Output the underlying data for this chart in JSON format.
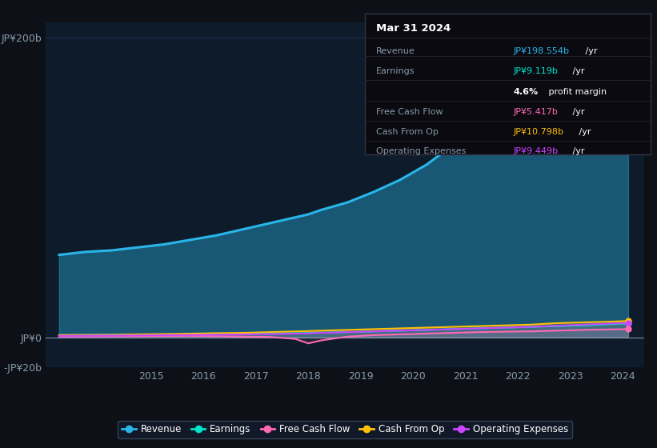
{
  "bg_color": "#0d1117",
  "plot_bg_color": "#0d1b2a",
  "years": [
    2013.25,
    2013.75,
    2014.25,
    2014.75,
    2015.25,
    2015.75,
    2016.25,
    2016.75,
    2017.25,
    2017.75,
    2018.0,
    2018.25,
    2018.75,
    2019.25,
    2019.75,
    2020.25,
    2020.75,
    2021.25,
    2021.75,
    2022.25,
    2022.75,
    2023.25,
    2023.75,
    2024.1
  ],
  "revenue": [
    55,
    57,
    58,
    60,
    62,
    65,
    68,
    72,
    76,
    80,
    82,
    85,
    90,
    97,
    105,
    115,
    128,
    143,
    158,
    168,
    178,
    188,
    195,
    199
  ],
  "earnings": [
    1.5,
    1.6,
    1.7,
    1.8,
    1.9,
    2.0,
    2.1,
    2.2,
    2.5,
    2.8,
    3.0,
    3.2,
    3.5,
    4.0,
    4.5,
    5.0,
    5.5,
    6.0,
    6.5,
    7.0,
    7.5,
    8.0,
    8.8,
    9.2
  ],
  "free_cash_flow": [
    0.5,
    0.6,
    0.7,
    0.8,
    0.9,
    1.0,
    0.8,
    0.5,
    0.3,
    -1.0,
    -4.0,
    -2.0,
    0.5,
    1.5,
    2.0,
    2.5,
    3.0,
    3.5,
    3.8,
    4.0,
    4.5,
    5.0,
    5.3,
    5.5
  ],
  "cash_from_op": [
    1.5,
    1.6,
    1.7,
    2.0,
    2.2,
    2.5,
    2.8,
    3.0,
    3.5,
    4.0,
    4.2,
    4.5,
    5.0,
    5.5,
    6.0,
    6.5,
    7.0,
    7.5,
    8.0,
    8.5,
    9.5,
    10.0,
    10.5,
    10.9
  ],
  "operating_expenses": [
    1.0,
    1.1,
    1.2,
    1.3,
    1.5,
    1.6,
    1.8,
    2.0,
    2.2,
    2.5,
    2.7,
    3.0,
    3.5,
    4.0,
    4.5,
    5.0,
    5.5,
    6.0,
    6.5,
    7.0,
    7.8,
    8.5,
    9.2,
    9.5
  ],
  "ylim": [
    -20,
    210
  ],
  "yticks": [
    -20,
    0,
    200
  ],
  "ytick_labels": [
    "-JP¥20b",
    "JP¥0",
    "JP¥200b"
  ],
  "xticks": [
    2015,
    2016,
    2017,
    2018,
    2019,
    2020,
    2021,
    2022,
    2023,
    2024
  ],
  "revenue_color": "#29b5e8",
  "earnings_color": "#00e5cc",
  "free_cash_flow_color": "#ff69b4",
  "cash_from_op_color": "#ffc107",
  "operating_expenses_color": "#cc44ff",
  "grid_color": "#1e3050",
  "legend_bg": "#111827",
  "legend_border": "#334155",
  "info_box": {
    "date": "Mar 31 2024",
    "rows": [
      {
        "label": "Revenue",
        "value": "JP¥198.554b /yr",
        "color": "#29b5e8"
      },
      {
        "label": "Earnings",
        "value": "JP¥9.119b /yr",
        "color": "#00e5cc"
      },
      {
        "label": "",
        "value": "4.6% profit margin",
        "color": "white"
      },
      {
        "label": "Free Cash Flow",
        "value": "JP¥5.417b /yr",
        "color": "#ff69b4"
      },
      {
        "label": "Cash From Op",
        "value": "JP¥10.798b /yr",
        "color": "#ffc107"
      },
      {
        "label": "Operating Expenses",
        "value": "JP¥9.449b /yr",
        "color": "#cc44ff"
      }
    ]
  }
}
